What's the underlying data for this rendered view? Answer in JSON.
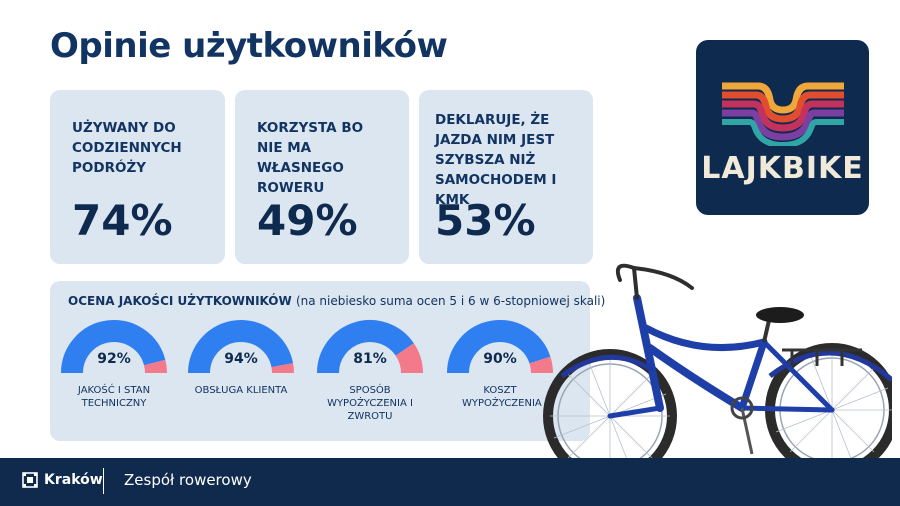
{
  "page": {
    "title": "Opinie użytkowników"
  },
  "stats": [
    {
      "label": "UŻYWANY DO CODZIENNYCH PODRÓŻY",
      "value": "74%"
    },
    {
      "label": "KORZYSTA BO NIE MA WŁASNEGO ROWERU",
      "value": "49%"
    },
    {
      "label": "DEKLARUJE, ŻE JAZDA NIM JEST SZYBSZA NIŻ SAMOCHODEM I KMK",
      "value": "53%"
    }
  ],
  "quality": {
    "title": "OCENA JAKOŚCI UŻYTKOWNIKÓW",
    "subtitle": "(na niebiesko suma ocen 5 i 6 w 6-stopniowej skali)",
    "colors": {
      "positive": "#2f7ff0",
      "negative": "#f27a8b"
    },
    "gauges": [
      {
        "value_text": "92%",
        "fraction": 0.92,
        "label": "JAKOŚĆ I STAN TECHNICZNY"
      },
      {
        "value_text": "94%",
        "fraction": 0.94,
        "label": "OBSŁUGA KLIENTA"
      },
      {
        "value_text": "81%",
        "fraction": 0.81,
        "label": "SPOSÓB WYPOŻYCZENIA I ZWROTU"
      },
      {
        "value_text": "90%",
        "fraction": 0.9,
        "label": "KOSZT WYPOŻYCZENIA"
      }
    ]
  },
  "logo": {
    "text": "LAJKBIKE"
  },
  "footer": {
    "brand": "Kraków",
    "department": "Zespół rowerowy"
  }
}
